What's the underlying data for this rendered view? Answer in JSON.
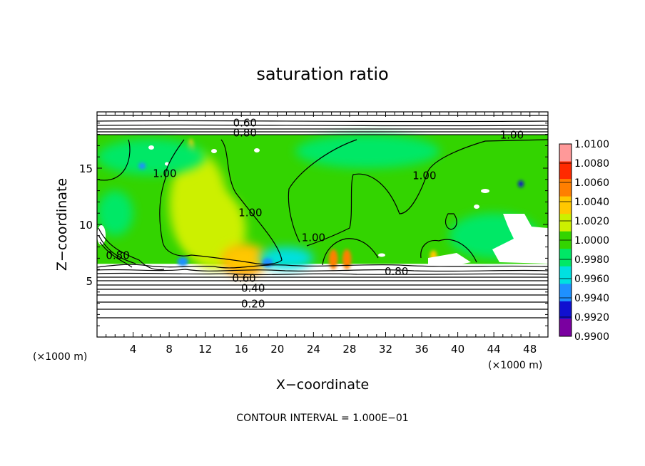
{
  "chart_data": {
    "type": "heatmap",
    "title": "saturation ratio",
    "xlabel": "X−coordinate",
    "ylabel": "Z−coordinate",
    "x_unit_label_left": "(×1000 m)",
    "x_unit_label_right": "(×1000 m)",
    "xlim": [
      0,
      50
    ],
    "ylim": [
      0,
      20
    ],
    "x_ticks": [
      4,
      8,
      12,
      16,
      20,
      24,
      28,
      32,
      36,
      40,
      44,
      48
    ],
    "y_ticks": [
      5,
      10,
      15
    ],
    "footer": "CONTOUR INTERVAL = 1.000E−01",
    "colorbar": {
      "levels": [
        "1.0100",
        "1.0080",
        "1.0060",
        "1.0040",
        "1.0020",
        "1.0000",
        "0.9980",
        "0.9960",
        "0.9940",
        "0.9920",
        "0.9900"
      ],
      "colors": [
        "#ff9999",
        "#ff2a00",
        "#ff7f00",
        "#ffc800",
        "#ccf000",
        "#33d400",
        "#00e866",
        "#00e0e0",
        "#1e90ff",
        "#1010d0",
        "#7a00a0"
      ]
    },
    "contour_labels": [
      {
        "text": "0.60",
        "x": 16.4,
        "z": 19.0
      },
      {
        "text": "0.80",
        "x": 16.4,
        "z": 18.1
      },
      {
        "text": "1.00",
        "x": 46.0,
        "z": 17.9
      },
      {
        "text": "1.00",
        "x": 7.5,
        "z": 14.5
      },
      {
        "text": "1.00",
        "x": 36.3,
        "z": 14.3
      },
      {
        "text": "1.00",
        "x": 17.0,
        "z": 11.0
      },
      {
        "text": "1.00",
        "x": 24.0,
        "z": 8.8
      },
      {
        "text": "0.80",
        "x": 2.3,
        "z": 7.2
      },
      {
        "text": "0.80",
        "x": 33.2,
        "z": 5.8
      },
      {
        "text": "0.60",
        "x": 16.3,
        "z": 5.2
      },
      {
        "text": "0.40",
        "x": 17.3,
        "z": 4.3
      },
      {
        "text": "0.20",
        "x": 17.3,
        "z": 2.9
      }
    ],
    "field_regions": [
      {
        "x": 0,
        "z": 6.5,
        "w": 50,
        "h": 11.5,
        "value": 1.0
      },
      {
        "x": 11.2,
        "z": 11.8,
        "sx": 3.2,
        "sz": 4.5,
        "value": 1.002
      },
      {
        "x": 13.0,
        "z": 9.5,
        "sx": 3.5,
        "sz": 3.5,
        "value": 1.001
      },
      {
        "x": 16.3,
        "z": 6.6,
        "sx": 1.8,
        "sz": 0.9,
        "value": 1.007
      },
      {
        "x": 16.3,
        "z": 6.9,
        "sx": 2.6,
        "sz": 1.4,
        "value": 1.004
      },
      {
        "x": 26.2,
        "z": 6.9,
        "sx": 0.5,
        "sz": 0.9,
        "value": 1.005
      },
      {
        "x": 27.7,
        "z": 6.9,
        "sx": 0.5,
        "sz": 0.9,
        "value": 1.005
      },
      {
        "x": 10.4,
        "z": 16.7,
        "sx": 0.4,
        "sz": 0.9,
        "value": 1.004
      },
      {
        "x": 37.3,
        "z": 7.2,
        "sx": 0.4,
        "sz": 0.5,
        "value": 1.004
      },
      {
        "x": 6.0,
        "z": 16.0,
        "sx": 6.0,
        "sz": 1.6,
        "value": 0.997
      },
      {
        "x": 30.0,
        "z": 16.5,
        "sx": 8.0,
        "sz": 1.5,
        "value": 0.998
      },
      {
        "x": 44.0,
        "z": 9.0,
        "sx": 5.0,
        "sz": 2.0,
        "value": 0.997
      },
      {
        "x": 21.0,
        "z": 7.0,
        "sx": 3.0,
        "sz": 1.0,
        "value": 0.996
      },
      {
        "x": 2.0,
        "z": 11.0,
        "sx": 2.0,
        "sz": 2.0,
        "value": 0.9975
      },
      {
        "x": 9.5,
        "z": 6.7,
        "sx": 0.6,
        "sz": 0.4,
        "value": 0.993
      },
      {
        "x": 18.9,
        "z": 6.6,
        "sx": 0.6,
        "sz": 0.4,
        "value": 0.993
      },
      {
        "x": 5.0,
        "z": 15.2,
        "sx": 0.4,
        "sz": 0.3,
        "value": 0.9935
      },
      {
        "x": 47.0,
        "z": 13.6,
        "sx": 0.3,
        "sz": 0.3,
        "value": 0.992
      }
    ]
  }
}
